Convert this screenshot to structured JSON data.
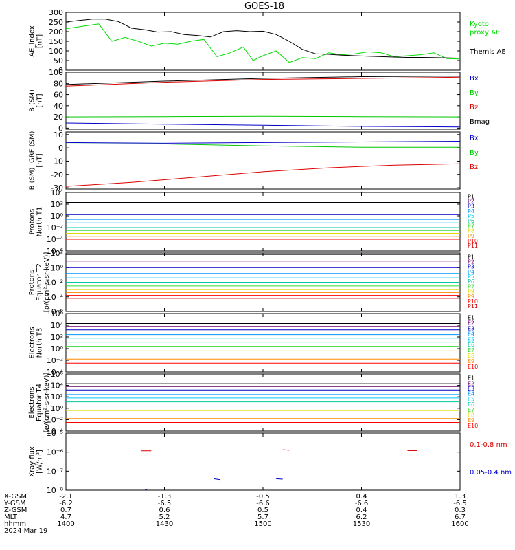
{
  "title": "GOES-18",
  "colors": {
    "frame": "#000000",
    "P1": "#000000",
    "P2": "#6a006a",
    "P3": "#0000c8",
    "P4": "#0096ff",
    "P5": "#00c8ff",
    "P6": "#00c8a0",
    "P7": "#32dc32",
    "P8": "#dcdc00",
    "P9": "#ff8c00",
    "P10": "#ff0000",
    "P11": "#c80000"
  },
  "xaxis": {
    "ticks": [
      "1400",
      "1430",
      "1500",
      "1530",
      "1600"
    ],
    "range": [
      840,
      960
    ],
    "rows": [
      {
        "label": "X-GSM",
        "values": [
          "-2.1",
          "-1.3",
          "-0.5",
          "0.4",
          "1.3"
        ]
      },
      {
        "label": "Y-GSM",
        "values": [
          "-6.2",
          "-6.5",
          "-6.6",
          "-6.6",
          "-6.5"
        ]
      },
      {
        "label": "Z-GSM",
        "values": [
          "0.7",
          "0.6",
          "0.5",
          "0.4",
          "0.3"
        ]
      },
      {
        "label": "MLT",
        "values": [
          "4.7",
          "5.2",
          "5.7",
          "6.2",
          "6.7"
        ]
      },
      {
        "label": "hhmm",
        "values": [
          "1400",
          "1430",
          "1500",
          "1530",
          "1600"
        ]
      }
    ],
    "date": "2024 Mar 19"
  },
  "chart_data": [
    {
      "id": "ae",
      "type": "line",
      "ylabel": [
        "AE_index",
        "[nT]"
      ],
      "ylim": [
        0,
        300
      ],
      "yticks": [
        "0",
        "50",
        "100",
        "150",
        "200",
        "250",
        "300"
      ],
      "yticks_values": [
        0,
        50,
        100,
        150,
        200,
        250,
        300
      ],
      "series": [
        {
          "name": "Kyoto proxy AE",
          "label_lines": [
            "Kyoto",
            "proxy AE"
          ],
          "color": "#00dc00",
          "x": [
            840,
            845,
            850,
            854,
            858,
            862,
            866,
            870,
            874,
            878,
            882,
            886,
            890,
            894,
            897,
            900,
            904,
            908,
            912,
            916,
            920,
            924,
            928,
            932,
            936,
            940,
            944,
            948,
            952,
            956,
            960
          ],
          "y": [
            215,
            228,
            240,
            150,
            170,
            150,
            125,
            140,
            135,
            150,
            160,
            70,
            90,
            120,
            50,
            75,
            100,
            40,
            65,
            60,
            90,
            80,
            85,
            95,
            90,
            70,
            75,
            80,
            90,
            60,
            58
          ]
        },
        {
          "name": "Themis AE",
          "label_lines": [
            "Themis AE"
          ],
          "color": "#000000",
          "x": [
            840,
            844,
            848,
            852,
            856,
            860,
            864,
            868,
            872,
            876,
            880,
            884,
            888,
            892,
            896,
            900,
            904,
            908,
            912,
            916,
            920,
            924,
            928,
            932,
            936,
            940,
            944,
            948,
            952,
            956,
            960
          ],
          "y": [
            250,
            258,
            265,
            265,
            252,
            218,
            210,
            198,
            200,
            185,
            180,
            172,
            200,
            205,
            200,
            202,
            185,
            150,
            108,
            85,
            82,
            78,
            75,
            72,
            70,
            68,
            66,
            66,
            65,
            64,
            62
          ]
        }
      ]
    },
    {
      "id": "bsm",
      "type": "line",
      "ylabel": [
        "B (SM)",
        "[nT]"
      ],
      "ylim": [
        -2,
        100
      ],
      "yticks": [
        "0",
        "20",
        "40",
        "60",
        "80",
        "100"
      ],
      "yticks_values": [
        0,
        20,
        40,
        60,
        80,
        100
      ],
      "series": [
        {
          "name": "Bx",
          "label_lines": [
            "Bx"
          ],
          "color": "#0000c8",
          "x": [
            840,
            870,
            900,
            930,
            960
          ],
          "y": [
            9,
            7,
            5,
            3,
            2
          ]
        },
        {
          "name": "By",
          "label_lines": [
            "By"
          ],
          "color": "#00c800",
          "x": [
            840,
            870,
            900,
            930,
            960
          ],
          "y": [
            20,
            20.5,
            21,
            20.5,
            20
          ]
        },
        {
          "name": "Bz",
          "label_lines": [
            "Bz"
          ],
          "color": "#dc0000",
          "x": [
            840,
            870,
            900,
            930,
            960
          ],
          "y": [
            75,
            82,
            87,
            89,
            91
          ]
        },
        {
          "name": "Bmag",
          "label_lines": [
            "Bmag"
          ],
          "color": "#000000",
          "x": [
            840,
            870,
            900,
            930,
            960
          ],
          "y": [
            78,
            84,
            89,
            92,
            93
          ]
        }
      ]
    },
    {
      "id": "bigrf",
      "type": "line",
      "ylabel": [
        "B (SM)-IGRF (SM)",
        "[nT]"
      ],
      "ylim": [
        -31,
        12
      ],
      "yticks": [
        "-30",
        "-20",
        "-10",
        "0",
        "10"
      ],
      "yticks_values": [
        -30,
        -20,
        -10,
        0,
        10
      ],
      "series": [
        {
          "name": "Bx",
          "label_lines": [
            "Bx"
          ],
          "color": "#0000c8",
          "x": [
            840,
            870,
            900,
            930,
            960
          ],
          "y": [
            4,
            3.5,
            4,
            4.5,
            5
          ]
        },
        {
          "name": "By",
          "label_lines": [
            "By"
          ],
          "color": "#00c800",
          "x": [
            840,
            870,
            900,
            930,
            960
          ],
          "y": [
            3,
            3,
            1.5,
            0.5,
            0.5
          ]
        },
        {
          "name": "Bz",
          "label_lines": [
            "Bz"
          ],
          "color": "#dc0000",
          "x": [
            840,
            860,
            880,
            900,
            920,
            940,
            960
          ],
          "y": [
            -29,
            -26,
            -22,
            -18,
            -15,
            -13,
            -12
          ]
        }
      ]
    },
    {
      "id": "protons_north",
      "type": "line",
      "scale": "log",
      "ylabel": [
        "Protons",
        "North T1"
      ],
      "ylim": [
        -6,
        4
      ],
      "yticks": [
        "10⁻⁶",
        "10⁻⁴",
        "10⁻²",
        "10⁰",
        "10²",
        "10⁴"
      ],
      "yticks_values": [
        -6,
        -4,
        -2,
        0,
        2,
        4
      ],
      "series_names": [
        "P1",
        "P2",
        "P3",
        "P4",
        "P5",
        "P6",
        "P7",
        "P8",
        "P9",
        "P10",
        "P11"
      ],
      "levels": [
        2.3,
        1.0,
        0.2,
        -0.6,
        -1.2,
        -2.0,
        -2.5,
        -3.0,
        -3.5,
        -4.0,
        -4.3
      ]
    },
    {
      "id": "protons_equator",
      "type": "line",
      "scale": "log",
      "ylabel": [
        "Protons",
        "Equator T2",
        "[p/(cm²-s-sr-keV)]"
      ],
      "ylim": [
        -6,
        2
      ],
      "yticks": [
        "10⁻⁶",
        "10⁻⁴",
        "10⁻²",
        "10⁰",
        "10²"
      ],
      "yticks_values": [
        -6,
        -4,
        -2,
        0,
        2
      ],
      "series_names": [
        "P1",
        "P2",
        "P3",
        "P4",
        "P5",
        "P6",
        "P7",
        "P8",
        "P9",
        "P10",
        "P11"
      ],
      "levels": [
        1.8,
        0.9,
        0.0,
        -0.8,
        -1.4,
        -2.0,
        -2.5,
        -3.0,
        -3.4,
        -3.8,
        -4.2
      ]
    },
    {
      "id": "electrons_north",
      "type": "line",
      "scale": "log",
      "ylabel": [
        "Electrons",
        "North T3"
      ],
      "ylim": [
        -4,
        6
      ],
      "yticks": [
        "10⁻⁴",
        "10⁻²",
        "10⁰",
        "10²",
        "10⁴",
        "10⁶"
      ],
      "yticks_values": [
        -4,
        -2,
        0,
        2,
        4,
        6
      ],
      "series_names": [
        "E1",
        "E2",
        "E3",
        "E4",
        "E5",
        "E6",
        "E7",
        "E8",
        "E9",
        "E10"
      ],
      "levels": [
        4.3,
        3.8,
        3.2,
        2.4,
        1.8,
        1.1,
        0.4,
        -0.4,
        -1.8,
        -2.5
      ]
    },
    {
      "id": "electrons_equator",
      "type": "line",
      "scale": "log",
      "ylabel": [
        "Electrons",
        "Equator T4",
        "[e/(cm²-s-sr-keV)]"
      ],
      "ylim": [
        -4,
        6
      ],
      "yticks": [
        "10⁻⁴",
        "10⁻²",
        "10⁰",
        "10²",
        "10⁴",
        "10⁶"
      ],
      "yticks_values": [
        -4,
        -2,
        0,
        2,
        4,
        6
      ],
      "series_names": [
        "E1",
        "E2",
        "E3",
        "E4",
        "E5",
        "E6",
        "E7",
        "E8",
        "E9",
        "E10"
      ],
      "levels": [
        4.3,
        3.8,
        3.2,
        2.4,
        1.8,
        1.1,
        0.4,
        -0.4,
        -1.8,
        -2.5
      ]
    },
    {
      "id": "xray",
      "type": "line",
      "scale": "log",
      "ylabel": [
        "Xray flux",
        "[W/m²]"
      ],
      "ylim": [
        -8,
        -5
      ],
      "yticks": [
        "10⁻⁸",
        "10⁻⁷",
        "10⁻⁶",
        "10⁻⁵"
      ],
      "yticks_values": [
        -8,
        -7,
        -6,
        -5
      ],
      "series": [
        {
          "name": "0.1-0.8 nm",
          "label_lines": [
            "0.1-0.8 nm"
          ],
          "color": "#dc0000",
          "segments": [
            [
              [
                863,
                -5.93
              ],
              [
                866,
                -5.93
              ]
            ],
            [
              [
                906,
                -5.87
              ],
              [
                908,
                -5.9
              ]
            ],
            [
              [
                944,
                -5.92
              ],
              [
                947,
                -5.92
              ]
            ]
          ]
        },
        {
          "name": "0.05-0.4 nm",
          "label_lines": [
            "0.05-0.4 nm"
          ],
          "color": "#0000c8",
          "segments": [
            [
              [
                864,
                -8.0
              ],
              [
                865,
                -7.93
              ]
            ],
            [
              [
                885,
                -7.4
              ],
              [
                887,
                -7.45
              ]
            ],
            [
              [
                904,
                -7.4
              ],
              [
                906,
                -7.42
              ]
            ]
          ]
        }
      ]
    }
  ]
}
